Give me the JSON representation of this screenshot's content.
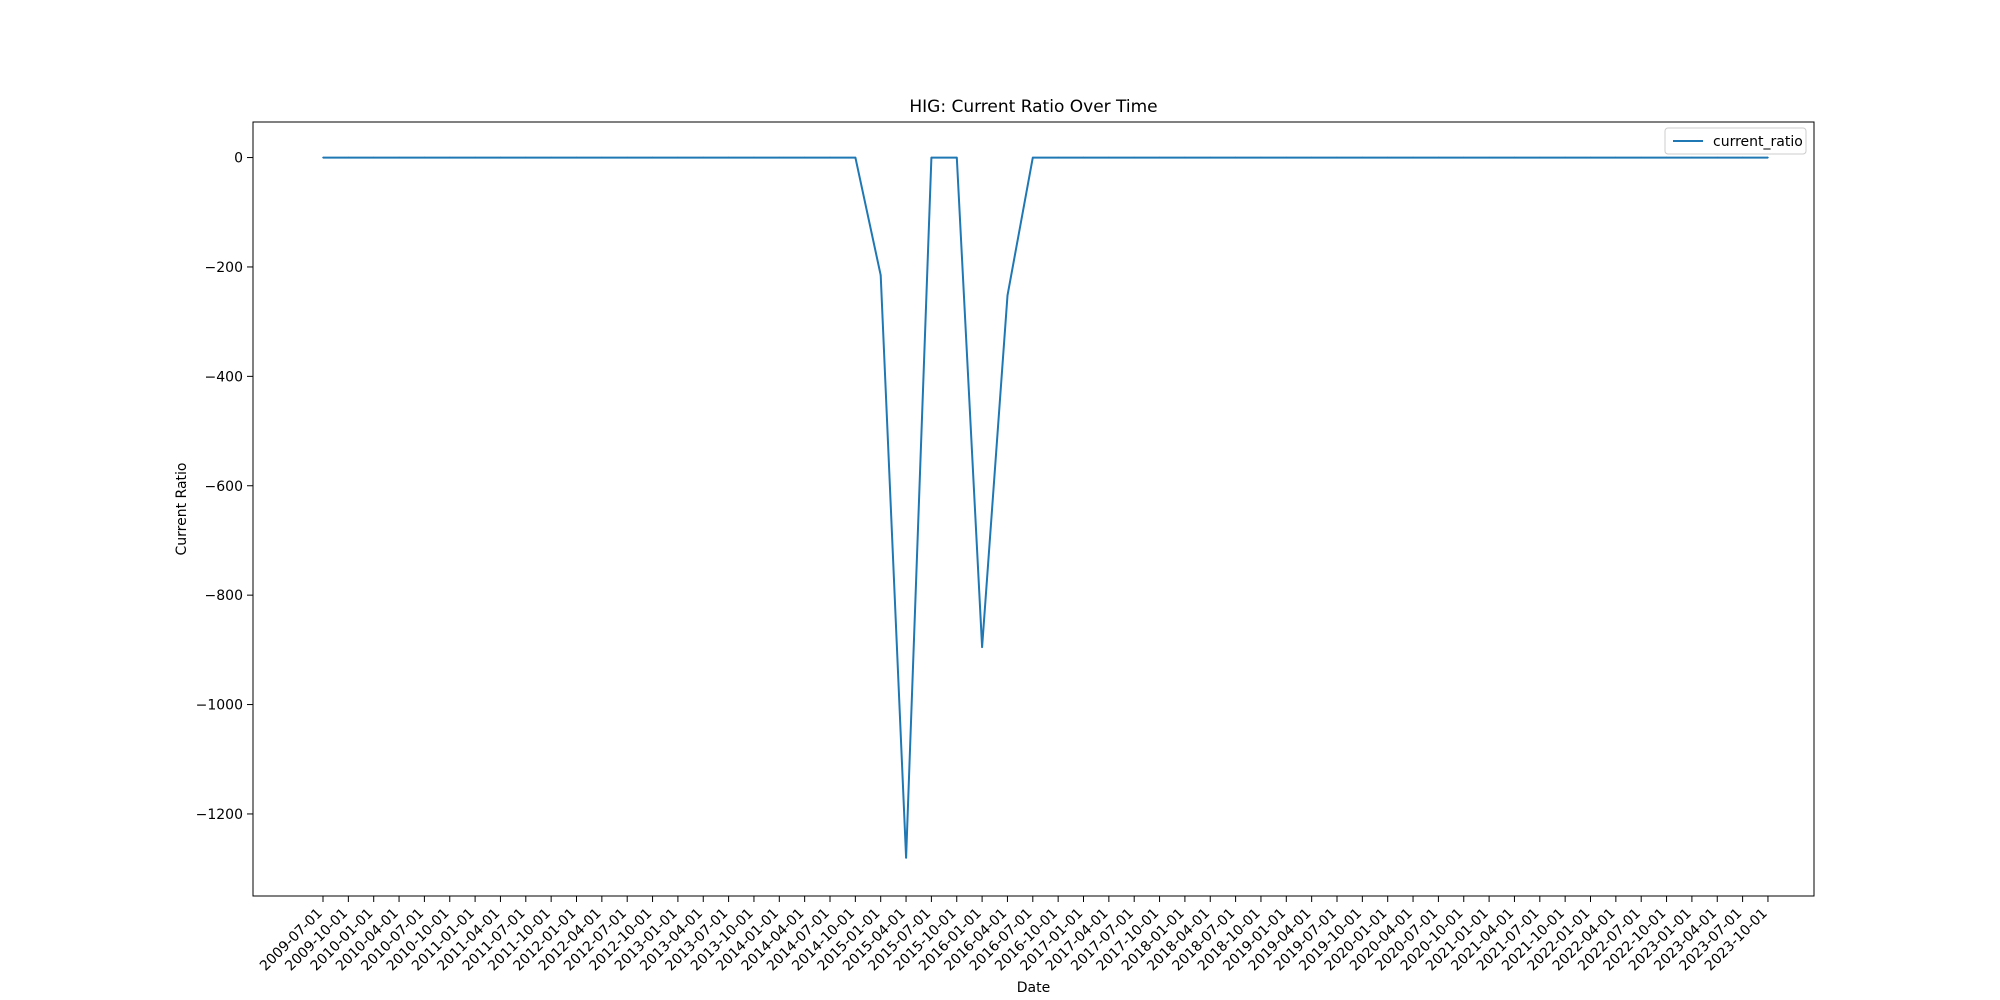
{
  "chart_data": {
    "type": "line",
    "title": "HIG: Current Ratio Over Time",
    "xlabel": "Date",
    "ylabel": "Current Ratio",
    "ylim": [
      -1350,
      65
    ],
    "yticks": [
      0,
      -200,
      -400,
      -600,
      -800,
      -1000,
      -1200
    ],
    "legend_position": "top-right",
    "grid": false,
    "x": [
      "2009-07-01",
      "2009-10-01",
      "2010-01-01",
      "2010-04-01",
      "2010-07-01",
      "2010-10-01",
      "2011-01-01",
      "2011-04-01",
      "2011-07-01",
      "2011-10-01",
      "2012-01-01",
      "2012-04-01",
      "2012-07-01",
      "2012-10-01",
      "2013-01-01",
      "2013-04-01",
      "2013-07-01",
      "2013-10-01",
      "2014-01-01",
      "2014-04-01",
      "2014-07-01",
      "2014-10-01",
      "2015-01-01",
      "2015-04-01",
      "2015-07-01",
      "2015-10-01",
      "2016-01-01",
      "2016-04-01",
      "2016-07-01",
      "2016-10-01",
      "2017-01-01",
      "2017-04-01",
      "2017-07-01",
      "2017-10-01",
      "2018-01-01",
      "2018-04-01",
      "2018-07-01",
      "2018-10-01",
      "2019-01-01",
      "2019-04-01",
      "2019-07-01",
      "2019-10-01",
      "2020-01-01",
      "2020-04-01",
      "2020-07-01",
      "2020-10-01",
      "2021-01-01",
      "2021-04-01",
      "2021-07-01",
      "2021-10-01",
      "2022-01-01",
      "2022-04-01",
      "2022-07-01",
      "2022-10-01",
      "2023-01-01",
      "2023-04-01",
      "2023-07-01",
      "2023-10-01"
    ],
    "series": [
      {
        "name": "current_ratio",
        "color": "#1f77b4",
        "values": [
          0,
          0,
          0,
          0,
          0,
          0,
          0,
          0,
          0,
          0,
          0,
          0,
          0,
          0,
          0,
          0,
          0,
          0,
          0,
          0,
          0,
          0,
          -215,
          -1280,
          0,
          0,
          -895,
          -252,
          0,
          0,
          0,
          0,
          0,
          0,
          0,
          0,
          0,
          0,
          0,
          0,
          0,
          0,
          0,
          0,
          0,
          0,
          0,
          0,
          0,
          0,
          0,
          0,
          0,
          0,
          0,
          0,
          0,
          0
        ]
      }
    ]
  }
}
